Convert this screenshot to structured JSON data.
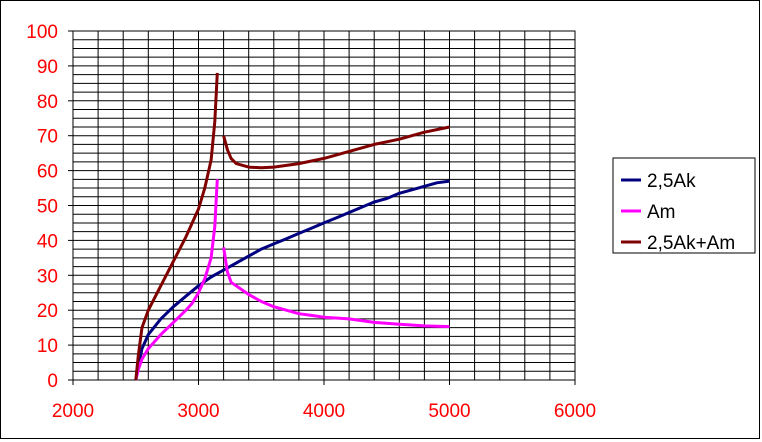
{
  "chart_data": {
    "type": "line",
    "title": "",
    "xlabel": "",
    "ylabel": "",
    "xlim": [
      2000,
      6000
    ],
    "ylim": [
      0,
      100
    ],
    "x_ticks": [
      "2000",
      "3000",
      "4000",
      "5000",
      "6000"
    ],
    "y_ticks": [
      "0",
      "10",
      "20",
      "30",
      "40",
      "50",
      "60",
      "70",
      "80",
      "90",
      "100"
    ],
    "grid": "on",
    "legend_position": "right",
    "colors": {
      "tick_labels": "#ff0000",
      "grid": "#000000",
      "axis": "#000000"
    },
    "series": [
      {
        "name": "2,5Ak",
        "color": "#000080",
        "points": [
          [
            2500,
            0
          ],
          [
            2520,
            4
          ],
          [
            2550,
            9
          ],
          [
            2600,
            13
          ],
          [
            2700,
            17.5
          ],
          [
            2800,
            21
          ],
          [
            2900,
            24
          ],
          [
            3000,
            27
          ],
          [
            3100,
            29.5
          ],
          [
            3200,
            31.5
          ],
          [
            3300,
            33.5
          ],
          [
            3400,
            35.5
          ],
          [
            3500,
            37.5
          ],
          [
            3600,
            39
          ],
          [
            3700,
            40.5
          ],
          [
            3800,
            42
          ],
          [
            3900,
            43.5
          ],
          [
            4000,
            45
          ],
          [
            4100,
            46.5
          ],
          [
            4200,
            48
          ],
          [
            4300,
            49.5
          ],
          [
            4400,
            51
          ],
          [
            4500,
            52
          ],
          [
            4600,
            53.5
          ],
          [
            4700,
            54.5
          ],
          [
            4800,
            55.5
          ],
          [
            4900,
            56.5
          ],
          [
            5000,
            57
          ]
        ]
      },
      {
        "name": "Am",
        "color": "#ff00ff",
        "segments": [
          [
            [
              2500,
              0
            ],
            [
              2520,
              3
            ],
            [
              2550,
              6
            ],
            [
              2600,
              9
            ],
            [
              2700,
              13
            ],
            [
              2800,
              16.5
            ],
            [
              2900,
              20
            ],
            [
              2950,
              22
            ],
            [
              3000,
              25
            ],
            [
              3050,
              29
            ],
            [
              3100,
              35
            ],
            [
              3130,
              44
            ],
            [
              3150,
              57.5
            ]
          ],
          [
            [
              3200,
              38
            ],
            [
              3230,
              31
            ],
            [
              3260,
              28
            ],
            [
              3300,
              27
            ],
            [
              3400,
              24.5
            ],
            [
              3500,
              22.5
            ],
            [
              3600,
              21
            ],
            [
              3700,
              20
            ],
            [
              3800,
              19
            ],
            [
              3900,
              18.5
            ],
            [
              4000,
              18
            ],
            [
              4200,
              17.5
            ],
            [
              4400,
              16.5
            ],
            [
              4600,
              16
            ],
            [
              4800,
              15.5
            ],
            [
              5000,
              15.3
            ]
          ]
        ]
      },
      {
        "name": "2,5Ak+Am",
        "color": "#800000",
        "segments": [
          [
            [
              2500,
              0
            ],
            [
              2520,
              7
            ],
            [
              2550,
              15
            ],
            [
              2600,
              20
            ],
            [
              2700,
              27
            ],
            [
              2800,
              34
            ],
            [
              2900,
              41
            ],
            [
              3000,
              49
            ],
            [
              3050,
              55
            ],
            [
              3100,
              63
            ],
            [
              3130,
              74
            ],
            [
              3150,
              88
            ]
          ],
          [
            [
              3200,
              70
            ],
            [
              3230,
              66
            ],
            [
              3260,
              63.5
            ],
            [
              3300,
              62
            ],
            [
              3400,
              61
            ],
            [
              3500,
              60.8
            ],
            [
              3600,
              61
            ],
            [
              3700,
              61.5
            ],
            [
              3800,
              62
            ],
            [
              4000,
              63.5
            ],
            [
              4200,
              65.5
            ],
            [
              4400,
              67.5
            ],
            [
              4600,
              69
            ],
            [
              4800,
              71
            ],
            [
              5000,
              72.5
            ]
          ]
        ]
      }
    ]
  }
}
